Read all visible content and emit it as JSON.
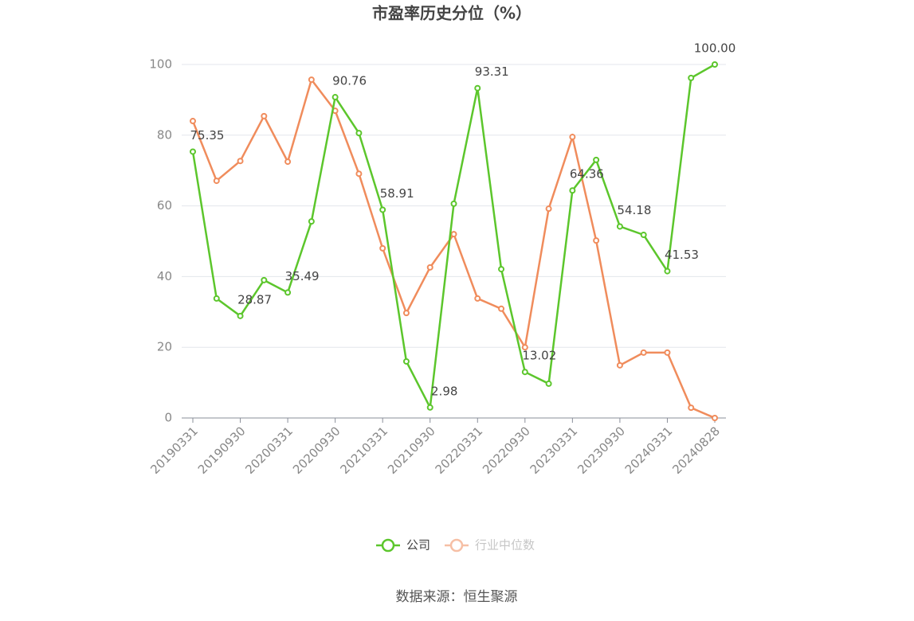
{
  "chart_data": {
    "type": "line",
    "title": "市盈率历史分位（%）",
    "categories": [
      "20190331",
      null,
      "20190930",
      null,
      "20200331",
      null,
      "20200930",
      null,
      "20210331",
      null,
      "20210930",
      null,
      "20220331",
      null,
      "20220930",
      null,
      "20230331",
      null,
      "20230930",
      null,
      "20240331",
      null,
      "20240828"
    ],
    "series": [
      {
        "name": "公司",
        "color": "#5cc62c",
        "values": [
          75.35,
          33.8,
          28.87,
          39.0,
          35.49,
          55.6,
          90.76,
          80.6,
          58.91,
          16.0,
          2.98,
          60.6,
          93.31,
          42.1,
          13.02,
          9.7,
          64.36,
          73.0,
          54.18,
          51.8,
          41.53,
          96.2,
          100
        ],
        "value_labels": [
          "75.35",
          null,
          "28.87",
          null,
          "35.49",
          null,
          "90.76",
          null,
          "58.91",
          null,
          "2.98",
          null,
          "93.31",
          null,
          "13.02",
          null,
          "64.36",
          null,
          "54.18",
          null,
          "41.53",
          null,
          "100.00"
        ]
      },
      {
        "name": "行业中位数",
        "color": "#f08c5c",
        "values": [
          84.0,
          67.1,
          72.7,
          85.4,
          72.5,
          95.7,
          86.9,
          69.1,
          48.0,
          29.7,
          42.6,
          52.0,
          33.8,
          30.9,
          20.0,
          59.2,
          79.5,
          50.2,
          14.9,
          18.5,
          18.5,
          2.9,
          0
        ]
      }
    ],
    "ylim": [
      0,
      100
    ],
    "yticks": [
      0,
      20,
      40,
      60,
      80,
      100
    ],
    "grid": true,
    "source": "数据来源：恒生聚源"
  }
}
